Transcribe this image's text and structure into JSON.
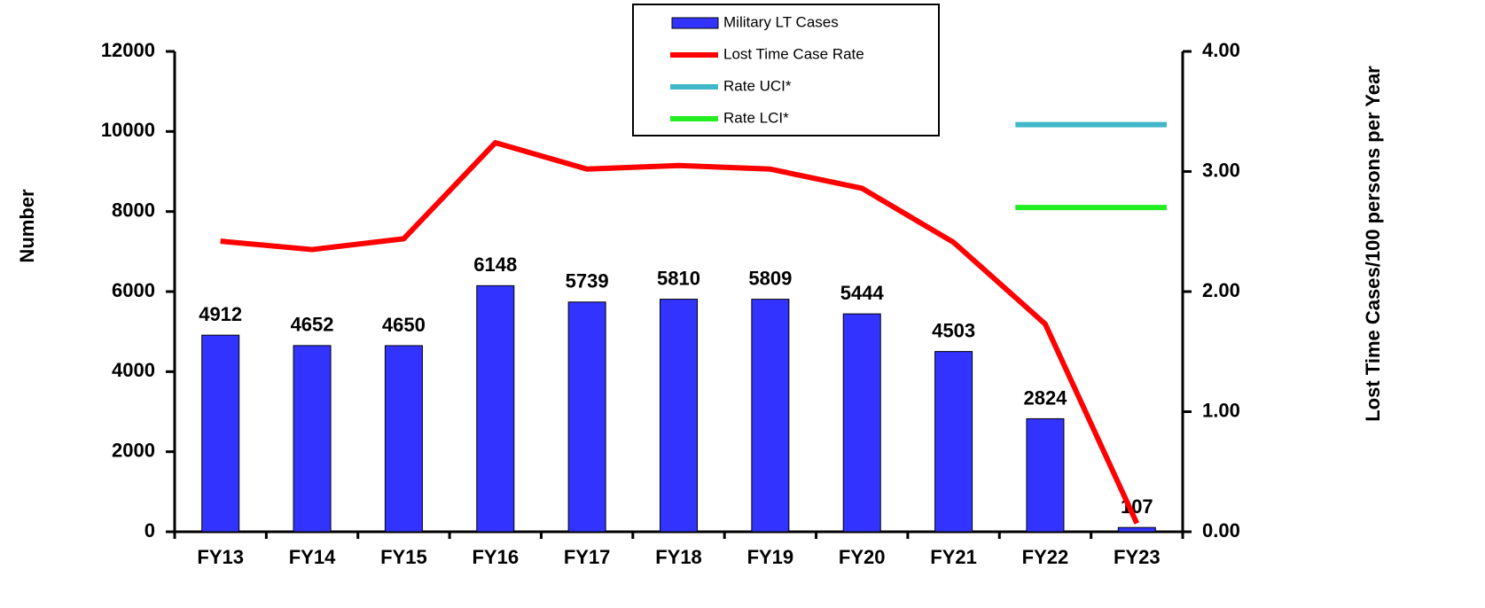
{
  "chart_data": {
    "type": "bar",
    "categories": [
      "FY13",
      "FY14",
      "FY15",
      "FY16",
      "FY17",
      "FY18",
      "FY19",
      "FY20",
      "FY21",
      "FY22",
      "FY23"
    ],
    "series": [
      {
        "name": "Military LT Cases",
        "type": "bar",
        "axis": "y",
        "color": "#3333ff",
        "values": [
          4912,
          4652,
          4650,
          6148,
          5739,
          5810,
          5809,
          5444,
          4503,
          2824,
          107
        ]
      },
      {
        "name": "Lost Time Case Rate",
        "type": "line",
        "axis": "y2",
        "color": "#ff0000",
        "values": [
          2.42,
          2.35,
          2.44,
          3.24,
          3.02,
          3.05,
          3.02,
          2.86,
          2.41,
          1.73,
          0.07
        ]
      },
      {
        "name": "Rate UCI*",
        "type": "line",
        "axis": "y2",
        "color": "#40b8c8",
        "values": [
          null,
          null,
          null,
          null,
          null,
          null,
          null,
          null,
          null,
          3.39,
          3.39
        ]
      },
      {
        "name": "Rate LCI*",
        "type": "line",
        "axis": "y2",
        "color": "#22ee22",
        "values": [
          null,
          null,
          null,
          null,
          null,
          null,
          null,
          null,
          null,
          2.7,
          2.7
        ]
      }
    ],
    "ylabel": "Number",
    "y2label": "Lost Time Cases/100 persons per Year",
    "ylim": [
      0,
      12000
    ],
    "yticks": [
      0,
      2000,
      4000,
      6000,
      8000,
      10000,
      12000
    ],
    "y2lim": [
      0,
      4
    ],
    "y2ticks": [
      {
        "value": 0,
        "label": "0.00"
      },
      {
        "value": 1,
        "label": "1.00"
      },
      {
        "value": 2,
        "label": "2.00"
      },
      {
        "value": 3,
        "label": "3.00"
      },
      {
        "value": 4,
        "label": "4.00"
      }
    ],
    "legend": "top"
  }
}
